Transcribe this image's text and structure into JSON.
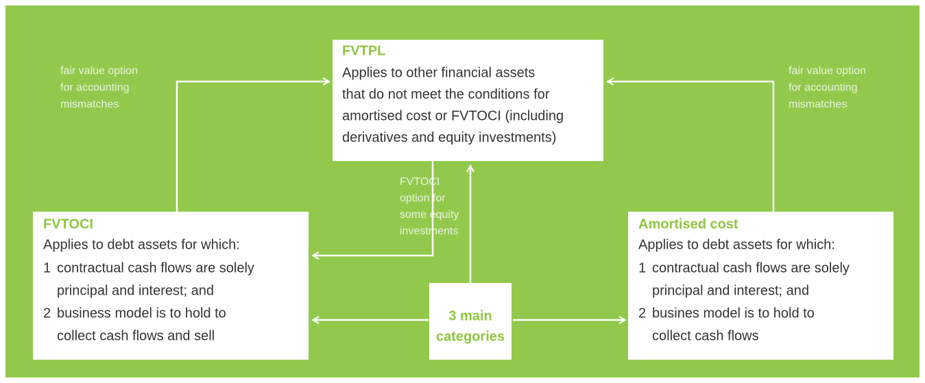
{
  "fvtpl": {
    "title": "FVTPL",
    "lines": [
      "Applies to other financial assets",
      "that do not meet the conditions for",
      "amortised cost or FVTOCI (including",
      "derivatives and equity investments)"
    ]
  },
  "fvtoci": {
    "title": "FVTOCI",
    "intro": "Applies to debt assets for which:",
    "items": [
      {
        "number": "1",
        "lines": [
          "contractual cash flows are solely",
          "principal and interest; and"
        ]
      },
      {
        "number": "2",
        "lines": [
          "business model is to hold to",
          "collect cash flows and sell"
        ]
      }
    ]
  },
  "amortised": {
    "title": "Amortised cost",
    "intro": "Applies to debt assets for which:",
    "items": [
      {
        "number": "1",
        "lines": [
          "contractual cash flows are solely",
          "principal and interest; and"
        ]
      },
      {
        "number": "2",
        "lines": [
          "busines model is to hold to",
          "collect cash flows"
        ]
      }
    ]
  },
  "center": {
    "lines": [
      "3 main",
      "categories"
    ]
  },
  "labels": {
    "left": [
      "fair value option",
      "for accounting",
      "mismatches"
    ],
    "right": [
      "fair value option",
      "for accounting",
      "mismatches"
    ],
    "middle": [
      "FVTOCI",
      "option for",
      "some equity",
      "investments"
    ]
  }
}
